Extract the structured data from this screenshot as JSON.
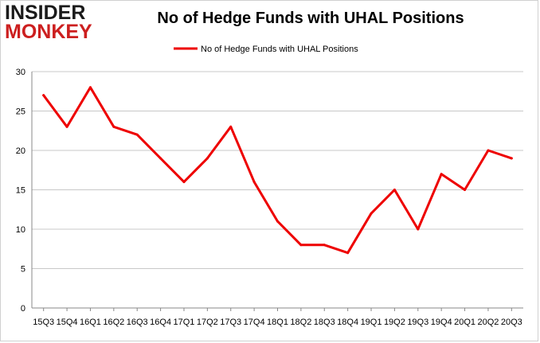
{
  "logo": {
    "line1": "INSIDER",
    "line2": "MONKEY"
  },
  "chart_data": {
    "type": "line",
    "title": "No of Hedge Funds with UHAL Positions",
    "xlabel": "",
    "ylabel": "",
    "categories": [
      "15Q3",
      "15Q4",
      "16Q1",
      "16Q2",
      "16Q3",
      "16Q4",
      "17Q1",
      "17Q2",
      "17Q3",
      "17Q4",
      "18Q1",
      "18Q2",
      "18Q3",
      "18Q4",
      "19Q1",
      "19Q2",
      "19Q3",
      "19Q4",
      "20Q1",
      "20Q2",
      "20Q3"
    ],
    "series": [
      {
        "name": "No of Hedge Funds with UHAL Positions",
        "values": [
          27,
          23,
          28,
          23,
          22,
          19,
          16,
          19,
          23,
          16,
          11,
          8,
          8,
          7,
          12,
          15,
          10,
          17,
          15,
          20,
          19
        ]
      }
    ],
    "ylim": [
      0,
      30
    ],
    "yticks": [
      0,
      5,
      10,
      15,
      20,
      25,
      30
    ],
    "grid": true,
    "legend_position": "top-center",
    "line_color": "#ee0000",
    "grid_color": "#c8c8c8"
  }
}
